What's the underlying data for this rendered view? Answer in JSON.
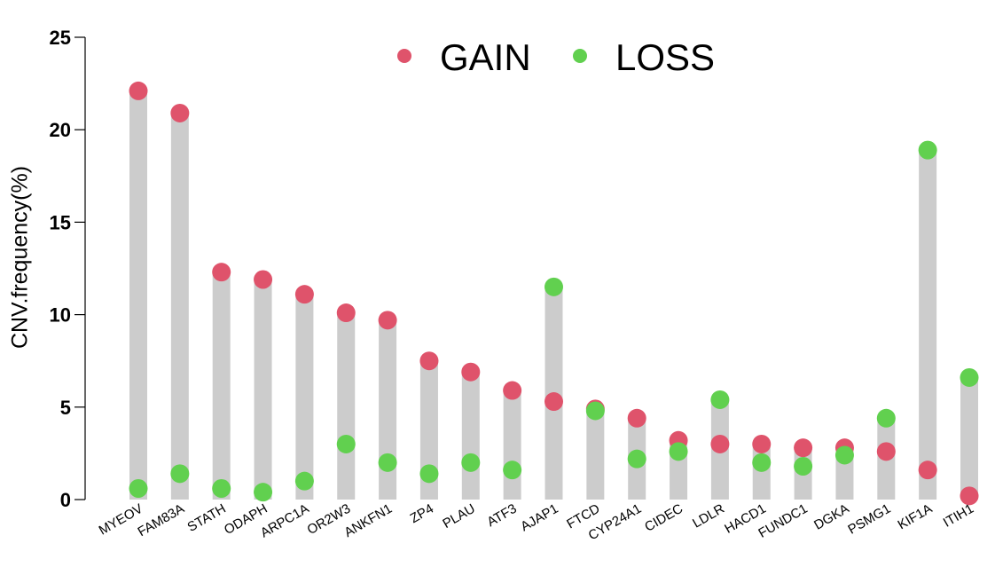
{
  "chart_data": {
    "type": "dumbbell",
    "ylabel": "CNV.frequency(%)",
    "xlabel": "",
    "ylim": [
      0,
      25
    ],
    "yticks": [
      "0",
      "5",
      "10",
      "15",
      "20",
      "25"
    ],
    "ytick_values": [
      0,
      5,
      10,
      15,
      20,
      25
    ],
    "grid": false,
    "legend_position": "top-center",
    "categories": [
      "MYEOV",
      "FAM83A",
      "STATH",
      "ODAPH",
      "ARPC1A",
      "OR2W3",
      "ANKFN1",
      "ZP4",
      "PLAU",
      "ATF3",
      "AJAP1",
      "FTCD",
      "CYP24A1",
      "CIDEC",
      "LDLR",
      "HACD1",
      "FUNDC1",
      "DGKA",
      "PSMG1",
      "KIF1A",
      "ITIH1"
    ],
    "series": [
      {
        "name": "GAIN",
        "color": "#df536b",
        "values": [
          22.1,
          20.9,
          12.3,
          11.9,
          11.1,
          10.1,
          9.7,
          7.5,
          6.9,
          5.9,
          5.3,
          4.9,
          4.4,
          3.2,
          3.0,
          3.0,
          2.8,
          2.8,
          2.6,
          1.6,
          0.2
        ]
      },
      {
        "name": "LOSS",
        "color": "#61d04f",
        "values": [
          0.6,
          1.4,
          0.6,
          0.4,
          1.0,
          3.0,
          2.0,
          1.4,
          2.0,
          1.6,
          11.5,
          4.8,
          2.2,
          2.6,
          5.4,
          2.0,
          1.8,
          2.4,
          4.4,
          18.9,
          6.6
        ]
      }
    ],
    "bar_color": "#cccccc",
    "axis_color": "#000000"
  }
}
